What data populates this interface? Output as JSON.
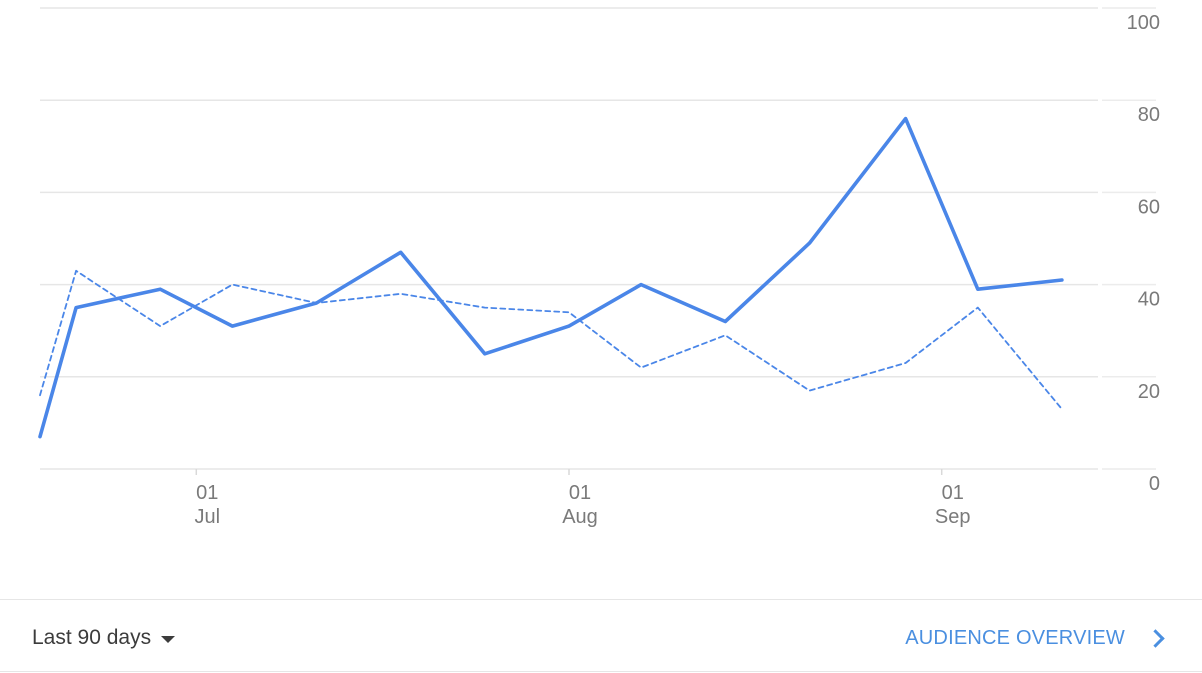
{
  "chart_data": {
    "type": "line",
    "x": [
      "2022-06-18",
      "2022-06-21",
      "2022-06-28",
      "2022-07-04",
      "2022-07-11",
      "2022-07-18",
      "2022-07-25",
      "2022-08-01",
      "2022-08-07",
      "2022-08-14",
      "2022-08-21",
      "2022-08-29",
      "2022-09-04",
      "2022-09-11"
    ],
    "series": [
      {
        "values": [
          7,
          35,
          39,
          31,
          36,
          47,
          25,
          31,
          40,
          32,
          49,
          76,
          39,
          41
        ],
        "style": "solid",
        "color": "#4a86e8"
      },
      {
        "values": [
          16,
          43,
          31,
          40,
          36,
          38,
          35,
          34,
          22,
          29,
          17,
          23,
          35,
          13
        ],
        "style": "dashed",
        "color": "#4a86e8"
      }
    ],
    "ylim": [
      0,
      100
    ],
    "yticks": [
      "0",
      "20",
      "40",
      "60",
      "80",
      "100"
    ],
    "xticks": [
      {
        "date": "2022-07-01",
        "day": "01",
        "month": "Jul"
      },
      {
        "date": "2022-08-01",
        "day": "01",
        "month": "Aug"
      },
      {
        "date": "2022-09-01",
        "day": "01",
        "month": "Sep"
      }
    ],
    "grid": true,
    "yaxis_side": "right"
  },
  "footer": {
    "range_label": "Last 90 days",
    "overview_label": "AUDIENCE OVERVIEW"
  },
  "icons": {
    "dropdown": "caret-down-icon",
    "link": "chevron-right-icon"
  }
}
